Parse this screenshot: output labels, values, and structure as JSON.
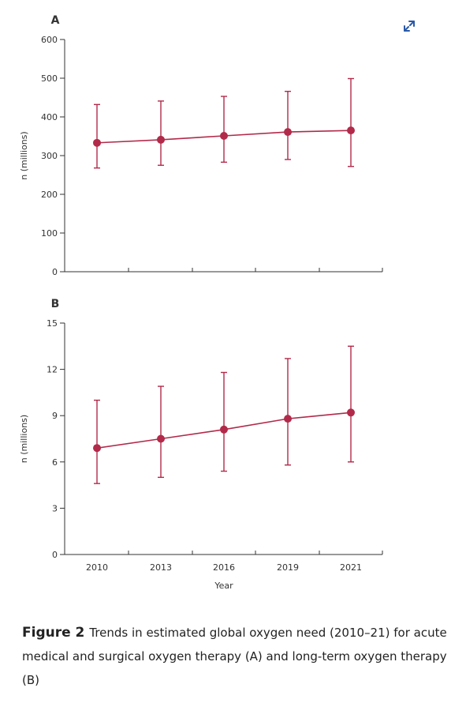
{
  "expand_icon": "expand-icon",
  "colors": {
    "series": "#b22a4a",
    "axis": "#333333"
  },
  "chart_data": [
    {
      "type": "line",
      "panel_label": "A",
      "x": [
        "2010",
        "2013",
        "2016",
        "2019",
        "2021"
      ],
      "series": [
        {
          "values": [
            333,
            341,
            351,
            361,
            365
          ],
          "lower": [
            268,
            275,
            283,
            290,
            272
          ],
          "upper": [
            432,
            441,
            453,
            466,
            499
          ]
        }
      ],
      "ylabel": "n (millions)",
      "ylim": [
        0,
        600
      ],
      "yticks": [
        "0",
        "100",
        "200",
        "300",
        "400",
        "500",
        "600"
      ],
      "grid": false
    },
    {
      "type": "line",
      "panel_label": "B",
      "x": [
        "2010",
        "2013",
        "2016",
        "2019",
        "2021"
      ],
      "series": [
        {
          "values": [
            6.9,
            7.5,
            8.1,
            8.8,
            9.2
          ],
          "lower": [
            4.6,
            5.0,
            5.4,
            5.8,
            6.0
          ],
          "upper": [
            10.0,
            10.9,
            11.8,
            12.7,
            13.5
          ]
        }
      ],
      "xlabel": "Year",
      "ylabel": "n (millions)",
      "ylim": [
        0,
        15
      ],
      "yticks": [
        "0",
        "3",
        "6",
        "9",
        "12",
        "15"
      ],
      "grid": false
    }
  ],
  "caption": {
    "label": "Figure 2",
    "text": "Trends in estimated global oxygen need (2010–21) for acute medical and surgical oxygen therapy (A) and long-term oxygen therapy (B)"
  }
}
